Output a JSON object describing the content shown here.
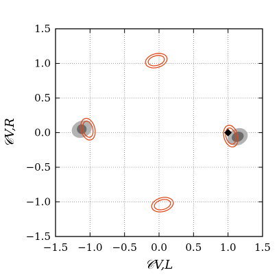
{
  "chart_data": {
    "type": "scatter",
    "title": "",
    "xlabel": "𝒞V,L",
    "ylabel": "𝒞V,R",
    "xlim": [
      -1.5,
      1.5
    ],
    "ylim": [
      -1.5,
      1.5
    ],
    "xticks": [
      -1.5,
      -1.0,
      -0.5,
      0.0,
      0.5,
      1.0,
      1.5
    ],
    "yticks": [
      -1.5,
      -1.0,
      -0.5,
      0.0,
      0.5,
      1.0,
      1.5
    ],
    "xtick_labels": [
      "−1.5",
      "−1.0",
      "−0.5",
      "0.0",
      "0.5",
      "1.0",
      "1.5"
    ],
    "ytick_labels": [
      "−1.5",
      "−1.0",
      "−0.5",
      "0.0",
      "0.5",
      "1.0",
      "1.5"
    ],
    "grid": true,
    "grey_regions": [
      {
        "center": [
          -1.12,
          0.05
        ],
        "outer_radii": [
          0.15,
          0.12
        ],
        "inner_radii": [
          0.07,
          0.07
        ],
        "angle_deg": -25
      },
      {
        "center": [
          1.14,
          -0.06
        ],
        "outer_radii": [
          0.15,
          0.12
        ],
        "inner_radii": [
          0.09,
          0.07
        ],
        "angle_deg": -25
      }
    ],
    "orange_contours": [
      {
        "center": [
          -1.03,
          0.05
        ],
        "outer_radii": [
          0.1,
          0.16
        ],
        "inner_radii": [
          0.07,
          0.12
        ],
        "angle_deg": -15
      },
      {
        "center": [
          1.04,
          -0.05
        ],
        "outer_radii": [
          0.1,
          0.16
        ],
        "inner_radii": [
          0.07,
          0.12
        ],
        "angle_deg": -15
      },
      {
        "center": [
          -0.04,
          1.04
        ],
        "outer_radii": [
          0.16,
          0.1
        ],
        "inner_radii": [
          0.12,
          0.07
        ],
        "angle_deg": -15
      },
      {
        "center": [
          0.05,
          -1.04
        ],
        "outer_radii": [
          0.16,
          0.1
        ],
        "inner_radii": [
          0.12,
          0.07
        ],
        "angle_deg": -15
      }
    ],
    "marker": {
      "x": 1.0,
      "y": 0.0,
      "shape": "diamond"
    },
    "colors": {
      "grey_outer": "#b3b3b3",
      "grey_inner": "#6b6b6b",
      "contour": "#e04a1b",
      "marker": "#000000",
      "grid": "#7f7f7f"
    }
  }
}
